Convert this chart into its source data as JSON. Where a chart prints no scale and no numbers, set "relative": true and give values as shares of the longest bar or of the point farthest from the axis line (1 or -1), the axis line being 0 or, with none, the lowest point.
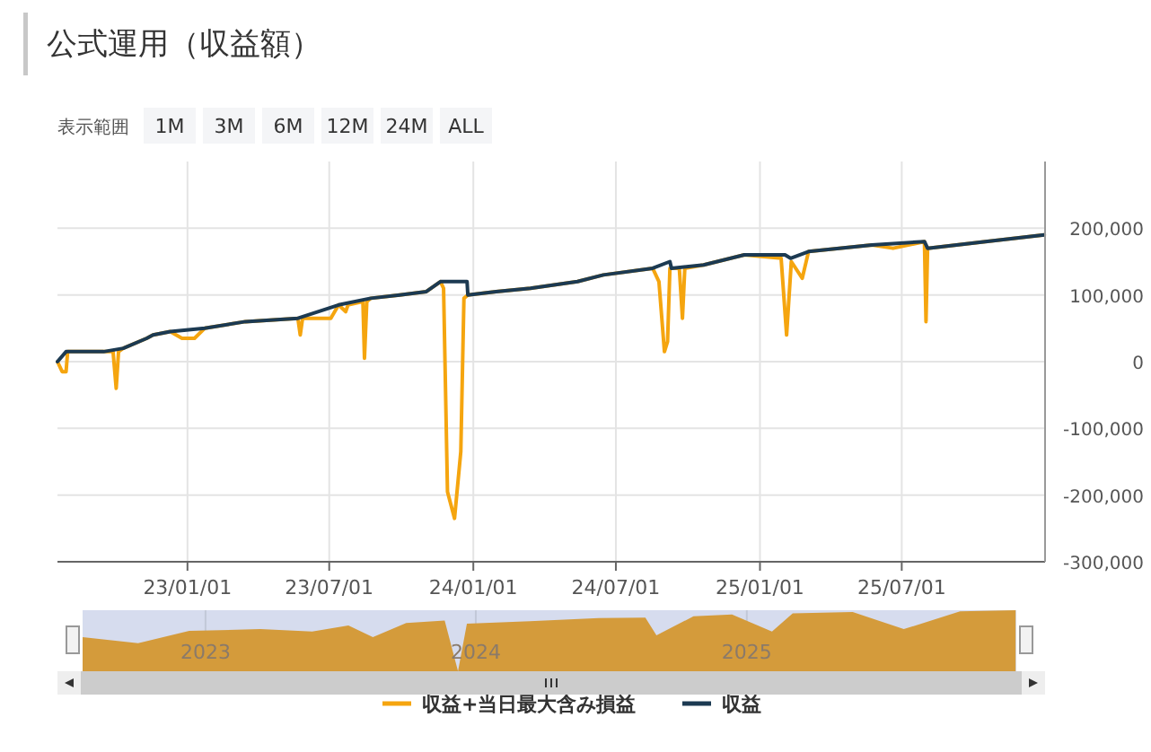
{
  "chart_data": [
    {
      "type": "line",
      "title": "公式運用（収益額）",
      "annotations": [
        "表示範囲",
        "1M",
        "3M",
        "6M",
        "12M",
        "24M",
        "ALL"
      ],
      "xlim": [
        "2022-07-19",
        "2025-12-31"
      ],
      "xticks": [
        {
          "value": "2023-01-01",
          "label": "23/01/01"
        },
        {
          "value": "2023-07-01",
          "label": "23/07/01"
        },
        {
          "value": "2024-01-01",
          "label": "24/01/01"
        },
        {
          "value": "2024-07-01",
          "label": "24/07/01"
        },
        {
          "value": "2025-01-01",
          "label": "25/01/01"
        },
        {
          "value": "2025-07-01",
          "label": "25/07/01"
        }
      ],
      "ylim": [
        -300000,
        300000
      ],
      "yticks": [
        {
          "value": 200000,
          "label": "200,000"
        },
        {
          "value": 100000,
          "label": "100,000"
        },
        0,
        {
          "value": -100000,
          "label": "-100,000"
        },
        {
          "value": -200000,
          "label": "-200,000"
        },
        {
          "value": -300000,
          "label": "-300,000"
        }
      ],
      "grid": true,
      "legend": "bottom",
      "line_style": "solid",
      "series": [
        {
          "name": "収益+当日最大含み損益",
          "color": "#f5a50f",
          "x": [
            "2022-07-19",
            "2022-07-25",
            "2022-07-30",
            "2022-08-01",
            "2022-09-12",
            "2022-09-16",
            "2022-09-28",
            "2022-10-02",
            "2022-10-05",
            "2022-10-11",
            "2022-11-10",
            "2022-11-18",
            "2022-12-10",
            "2022-12-25",
            "2023-01-10",
            "2023-01-23",
            "2023-03-16",
            "2023-05-22",
            "2023-05-25",
            "2023-05-28",
            "2023-07-03",
            "2023-07-13",
            "2023-07-22",
            "2023-07-25",
            "2023-08-13",
            "2023-08-15",
            "2023-08-18",
            "2023-08-23",
            "2023-09-29",
            "2023-11-02",
            "2023-11-20",
            "2023-11-24",
            "2023-11-29",
            "2023-12-08",
            "2023-12-12",
            "2023-12-16",
            "2023-12-20",
            "2023-12-25",
            "2024-01-30",
            "2024-03-14",
            "2024-05-13",
            "2024-06-15",
            "2024-08-17",
            "2024-08-25",
            "2024-09-01",
            "2024-09-05",
            "2024-09-08",
            "2024-09-20",
            "2024-09-24",
            "2024-09-27",
            "2024-10-21",
            "2024-12-12",
            "2025-01-28",
            "2025-02-04",
            "2025-02-10",
            "2025-02-24",
            "2025-03-04",
            "2025-05-24",
            "2025-06-20",
            "2025-07-30",
            "2025-08-01",
            "2025-08-03",
            "2025-10-16",
            "2025-12-30"
          ],
          "values": [
            0,
            -15000,
            -15000,
            15000,
            15000,
            15000,
            15000,
            -40000,
            15000,
            20000,
            35000,
            40000,
            45000,
            35000,
            35000,
            50000,
            60000,
            65000,
            40000,
            65000,
            65000,
            85000,
            75000,
            85000,
            90000,
            5000,
            90000,
            95000,
            100000,
            105000,
            120000,
            110000,
            -195000,
            -235000,
            -185000,
            -135000,
            95000,
            100000,
            105000,
            110000,
            120000,
            130000,
            140000,
            120000,
            15000,
            30000,
            140000,
            140000,
            65000,
            140000,
            145000,
            160000,
            155000,
            40000,
            150000,
            125000,
            165000,
            175000,
            170000,
            180000,
            60000,
            170000,
            180000,
            190000
          ]
        },
        {
          "name": "収益",
          "color": "#1c3a52",
          "x": [
            "2022-07-19",
            "2022-07-30",
            "2022-09-12",
            "2022-09-16",
            "2022-10-11",
            "2022-11-10",
            "2022-11-18",
            "2022-12-10",
            "2023-01-23",
            "2023-03-16",
            "2023-05-22",
            "2023-07-13",
            "2023-08-23",
            "2023-09-29",
            "2023-11-02",
            "2023-11-20",
            "2023-12-24",
            "2023-12-25",
            "2024-01-30",
            "2024-03-14",
            "2024-05-13",
            "2024-06-15",
            "2024-08-17",
            "2024-09-08",
            "2024-09-10",
            "2024-10-21",
            "2024-12-12",
            "2025-02-02",
            "2025-02-09",
            "2025-03-04",
            "2025-05-24",
            "2025-07-30",
            "2025-08-03",
            "2025-10-16",
            "2025-12-30"
          ],
          "values": [
            0,
            15000,
            15000,
            15000,
            20000,
            35000,
            40000,
            45000,
            50000,
            60000,
            65000,
            85000,
            95000,
            100000,
            105000,
            120000,
            120000,
            100000,
            105000,
            110000,
            120000,
            130000,
            140000,
            150000,
            140000,
            145000,
            160000,
            160000,
            155000,
            165000,
            175000,
            180000,
            170000,
            180000,
            190000
          ]
        }
      ]
    },
    {
      "type": "area",
      "relative": true,
      "color": "#d49b3b",
      "xlim": [
        "2022-07-19",
        "2025-12-31"
      ],
      "xticks": [
        {
          "value": "2023-01-01",
          "label": "2023"
        },
        {
          "value": "2024-01-01",
          "label": "2024"
        },
        {
          "value": "2025-01-01",
          "label": "2025"
        }
      ],
      "grid": "x",
      "x": [
        "2022-07-19",
        "2022-10-02",
        "2022-12-10",
        "2023-03-16",
        "2023-05-25",
        "2023-07-13",
        "2023-08-15",
        "2023-09-29",
        "2023-11-20",
        "2023-12-08",
        "2023-12-20",
        "2024-03-14",
        "2024-06-15",
        "2024-08-17",
        "2024-09-01",
        "2024-10-21",
        "2024-12-12",
        "2025-02-04",
        "2025-03-04",
        "2025-05-24",
        "2025-08-01",
        "2025-10-16",
        "2025-12-30"
      ],
      "values": [
        0.56,
        0.46,
        0.66,
        0.69,
        0.65,
        0.75,
        0.56,
        0.79,
        0.83,
        0,
        0.78,
        0.82,
        0.87,
        0.88,
        0.59,
        0.9,
        0.93,
        0.65,
        0.95,
        0.97,
        0.69,
        0.98,
        1
      ]
    }
  ]
}
